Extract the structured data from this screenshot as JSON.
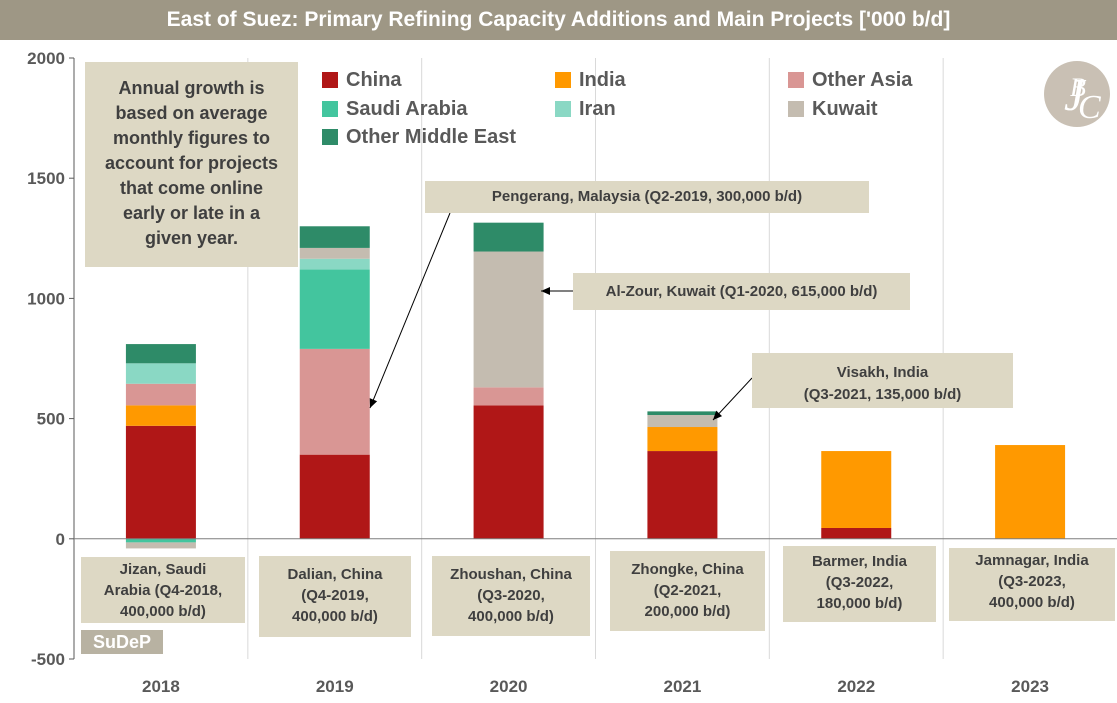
{
  "title": "East of Suez: Primary Refining Capacity Additions and Main Projects ['000 b/d]",
  "note": [
    "Annual growth is",
    "based on average",
    "monthly figures to",
    "account for projects",
    "that come online",
    "early or late in a",
    "given year."
  ],
  "callouts": {
    "pengerang": "Pengerang, Malaysia (Q2-2019, 300,000 b/d)",
    "alzour": "Al-Zour, Kuwait (Q1-2020, 615,000 b/d)",
    "visakh": [
      "Visakh, India",
      "(Q3-2021, 135,000 b/d)"
    ]
  },
  "projects": [
    [
      "Jizan, Saudi",
      "Arabia (Q4-2018,",
      "400,000 b/d)"
    ],
    [
      "Dalian, China",
      "(Q4-2019,",
      "400,000 b/d)"
    ],
    [
      "Zhoushan, China",
      "(Q3-2020,",
      "400,000 b/d)"
    ],
    [
      "Zhongke, China",
      "(Q2-2021,",
      "200,000 b/d)"
    ],
    [
      "Barmer, India",
      "(Q3-2022,",
      "180,000 b/d)"
    ],
    [
      "Jamnagar, India",
      "(Q3-2023,",
      "400,000 b/d)"
    ]
  ],
  "badge": "SuDeP",
  "logo_icon": "jbc-logo-icon",
  "chart_data": {
    "type": "bar",
    "stacked": true,
    "categories": [
      "2018",
      "2019",
      "2020",
      "2021",
      "2022",
      "2023"
    ],
    "ylim": [
      -500,
      2000
    ],
    "yticks": [
      -500,
      0,
      500,
      1000,
      1500,
      2000
    ],
    "grid": "vertical separators",
    "legend_placement": "top",
    "series": [
      {
        "name": "China",
        "color": "#b01717",
        "values": [
          470,
          350,
          555,
          365,
          45,
          0
        ]
      },
      {
        "name": "India",
        "color": "#ff9900",
        "values": [
          85,
          0,
          0,
          100,
          320,
          390
        ]
      },
      {
        "name": "Other Asia",
        "color": "#d99694",
        "values": [
          90,
          440,
          75,
          0,
          0,
          0
        ]
      },
      {
        "name": "Saudi Arabia",
        "color": "#43c59e",
        "values": [
          -15,
          330,
          0,
          0,
          0,
          0
        ]
      },
      {
        "name": "Iran",
        "color": "#8ad8c4",
        "values": [
          85,
          45,
          0,
          0,
          0,
          0
        ]
      },
      {
        "name": "Kuwait",
        "color": "#c4bcb0",
        "values": [
          -25,
          45,
          565,
          50,
          0,
          0
        ]
      },
      {
        "name": "Other Middle East",
        "color": "#2e8b68",
        "values": [
          80,
          90,
          120,
          15,
          0,
          0
        ]
      }
    ]
  }
}
